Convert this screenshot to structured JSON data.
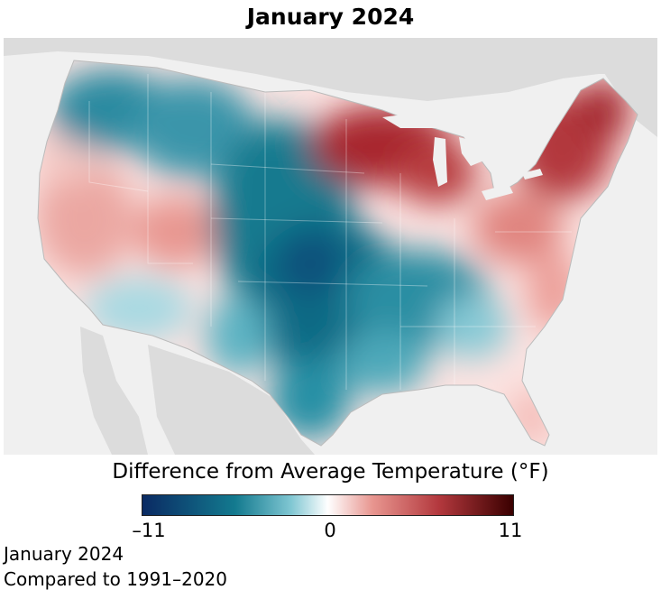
{
  "title": "January 2024",
  "legend": {
    "title": "Difference from Average Temperature (°F)",
    "ticks": [
      "–11",
      "0",
      "11"
    ],
    "scale": {
      "min": -11,
      "mid": 0,
      "max": 11
    },
    "colors": {
      "cold_extreme": "#0a2a63",
      "cold": "#137a8f",
      "cool": "#7fc6d2",
      "neutral": "#ffffff",
      "warm": "#e89690",
      "hot": "#b3383d",
      "hot_extreme": "#3a0000"
    }
  },
  "caption": {
    "line1": "January 2024",
    "line2": "Compared to 1991–2020"
  },
  "map": {
    "background_color": "#f0f0f0",
    "land_color": "#dcdcdc"
  }
}
